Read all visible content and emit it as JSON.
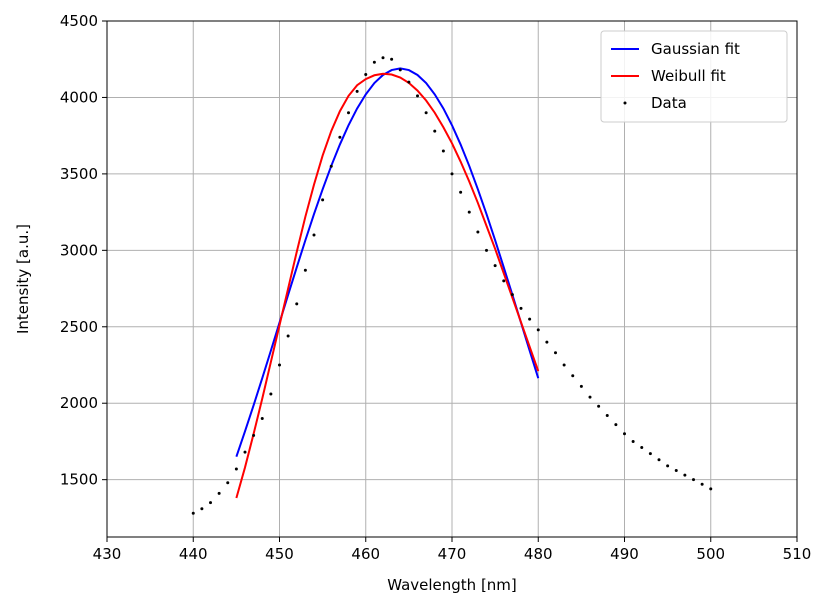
{
  "chart_data": {
    "type": "line",
    "xlabel": "Wavelength [nm]",
    "ylabel": "Intensity [a.u.]",
    "xlim": [
      430,
      510
    ],
    "xticks": [
      430,
      440,
      450,
      460,
      470,
      480,
      490,
      500,
      510
    ],
    "ylim": [
      1125,
      4500
    ],
    "yticks": [
      1500,
      2000,
      2500,
      3000,
      3500,
      4000,
      4500
    ],
    "grid": true,
    "legend": "upper right",
    "series": [
      {
        "name": "Gaussian fit",
        "color": "#0000ff",
        "type": "line",
        "x": [
          445,
          446,
          447,
          448,
          449,
          450,
          451,
          452,
          453,
          454,
          455,
          456,
          457,
          458,
          459,
          460,
          461,
          462,
          463,
          464,
          465,
          466,
          467,
          468,
          469,
          470,
          471,
          472,
          473,
          474,
          475,
          476,
          477,
          478,
          479,
          480
        ],
        "values": [
          1650,
          1816,
          1987,
          2164,
          2344,
          2527,
          2709,
          2889,
          3066,
          3237,
          3399,
          3552,
          3692,
          3818,
          3928,
          4020,
          4094,
          4147,
          4179,
          4190,
          4179,
          4147,
          4094,
          4020,
          3928,
          3818,
          3692,
          3552,
          3399,
          3237,
          3066,
          2889,
          2709,
          2527,
          2344,
          2164
        ]
      },
      {
        "name": "Weibull fit",
        "color": "#ff0000",
        "type": "line",
        "x": [
          445,
          446,
          447,
          448,
          449,
          450,
          451,
          452,
          453,
          454,
          455,
          456,
          457,
          458,
          459,
          460,
          461,
          462,
          463,
          464,
          465,
          466,
          467,
          468,
          469,
          470,
          471,
          472,
          473,
          474,
          475,
          476,
          477,
          478,
          479,
          480
        ],
        "values": [
          1380,
          1580,
          1800,
          2030,
          2270,
          2510,
          2750,
          2990,
          3220,
          3430,
          3620,
          3780,
          3910,
          4010,
          4080,
          4120,
          4145,
          4155,
          4150,
          4130,
          4095,
          4045,
          3980,
          3900,
          3805,
          3700,
          3580,
          3450,
          3310,
          3160,
          3010,
          2850,
          2690,
          2530,
          2370,
          2210
        ]
      },
      {
        "name": "Data",
        "color": "#000000",
        "type": "scatter",
        "x": [
          440,
          441,
          442,
          443,
          444,
          445,
          446,
          447,
          448,
          449,
          450,
          451,
          452,
          453,
          454,
          455,
          456,
          457,
          458,
          459,
          460,
          461,
          462,
          463,
          464,
          465,
          466,
          467,
          468,
          469,
          470,
          471,
          472,
          473,
          474,
          475,
          476,
          477,
          478,
          479,
          480,
          481,
          482,
          483,
          484,
          485,
          486,
          487,
          488,
          489,
          490,
          491,
          492,
          493,
          494,
          495,
          496,
          497,
          498,
          499,
          500
        ],
        "values": [
          1280,
          1310,
          1350,
          1410,
          1480,
          1570,
          1680,
          1790,
          1900,
          2060,
          2250,
          2440,
          2650,
          2870,
          3100,
          3330,
          3550,
          3740,
          3900,
          4040,
          4150,
          4230,
          4260,
          4250,
          4180,
          4100,
          4010,
          3900,
          3780,
          3650,
          3500,
          3380,
          3250,
          3120,
          3000,
          2900,
          2800,
          2710,
          2620,
          2550,
          2480,
          2400,
          2330,
          2250,
          2180,
          2110,
          2040,
          1980,
          1920,
          1860,
          1800,
          1750,
          1710,
          1670,
          1630,
          1590,
          1560,
          1530,
          1500,
          1470,
          1440
        ]
      }
    ]
  }
}
